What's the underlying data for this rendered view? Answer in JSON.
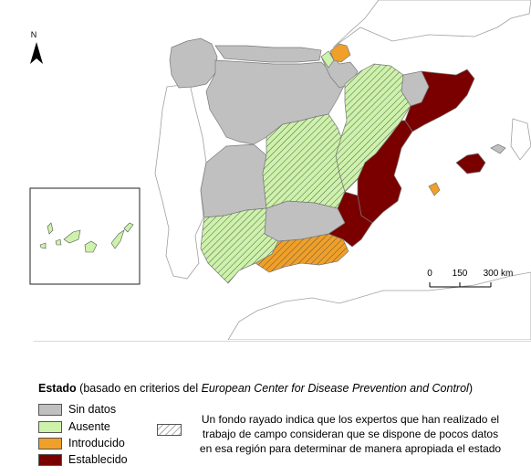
{
  "legend": {
    "title_bold": "Estado",
    "title_rest_1": " (basado en criterios del ",
    "title_italic": "European Center for Disease Prevention and Control",
    "title_rest_2": ")",
    "items": [
      {
        "label": "Sin datos",
        "color": "#c0c0c0"
      },
      {
        "label": "Ausente",
        "color": "#cdf2aa"
      },
      {
        "label": "Introducido",
        "color": "#f0a028"
      },
      {
        "label": "Establecido",
        "color": "#7a0000"
      }
    ],
    "hatch_note": [
      "Un fondo rayado indica que los expertos que han realizado el",
      "trabajo de campo consideran que se dispone de pocos datos",
      "en esa región para determinar de manera apropiada el estado"
    ]
  },
  "map": {
    "north_label": "N",
    "scale_labels": [
      "0",
      "150",
      "300 km"
    ],
    "colors": {
      "sin_datos": "#c0c0c0",
      "ausente": "#cdf2aa",
      "introducido": "#f0a028",
      "establecido": "#7a0000",
      "background_land": "#ffffff",
      "border": "#7a7a7a"
    }
  }
}
